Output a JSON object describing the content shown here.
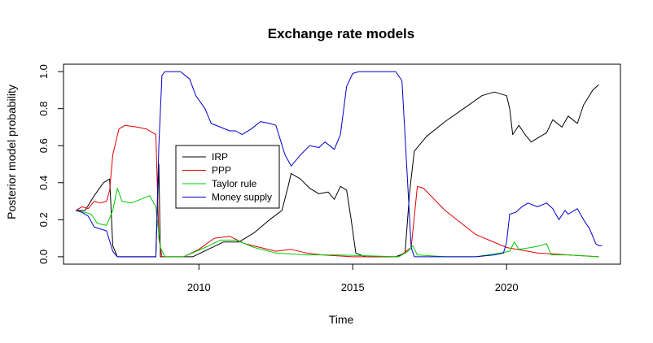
{
  "chart_data": {
    "type": "line",
    "title": "Exchange rate models",
    "xlabel": "Time",
    "ylabel": "Posterior model probability",
    "xlim": [
      2005.6,
      2023.7
    ],
    "ylim": [
      -0.04,
      1.04
    ],
    "x_ticks": [
      2010,
      2015,
      2020
    ],
    "x_tick_labels": [
      "2010",
      "2015",
      "2020"
    ],
    "y_ticks": [
      0.0,
      0.2,
      0.4,
      0.6,
      0.8,
      1.0
    ],
    "y_tick_labels": [
      "0.0",
      "0.2",
      "0.4",
      "0.6",
      "0.8",
      "1.0"
    ],
    "grid": false,
    "legend_position": "center-left",
    "series": [
      {
        "name": "IRP",
        "color": "#000000",
        "points": [
          [
            2006.0,
            0.25
          ],
          [
            2006.3,
            0.25
          ],
          [
            2006.6,
            0.33
          ],
          [
            2006.9,
            0.4
          ],
          [
            2007.1,
            0.42
          ],
          [
            2007.2,
            0.06
          ],
          [
            2007.35,
            0.0
          ],
          [
            2008.4,
            0.0
          ],
          [
            2008.6,
            0.0
          ],
          [
            2008.7,
            0.5
          ],
          [
            2008.75,
            0.0
          ],
          [
            2009.2,
            0.0
          ],
          [
            2009.8,
            0.0
          ],
          [
            2010.3,
            0.04
          ],
          [
            2010.8,
            0.08
          ],
          [
            2011.3,
            0.08
          ],
          [
            2011.8,
            0.13
          ],
          [
            2012.3,
            0.2
          ],
          [
            2012.7,
            0.25
          ],
          [
            2012.9,
            0.38
          ],
          [
            2013.0,
            0.45
          ],
          [
            2013.3,
            0.42
          ],
          [
            2013.6,
            0.37
          ],
          [
            2013.9,
            0.34
          ],
          [
            2014.2,
            0.35
          ],
          [
            2014.4,
            0.31
          ],
          [
            2014.6,
            0.38
          ],
          [
            2014.8,
            0.36
          ],
          [
            2014.95,
            0.2
          ],
          [
            2015.1,
            0.02
          ],
          [
            2015.4,
            0.0
          ],
          [
            2016.4,
            0.0
          ],
          [
            2016.7,
            0.02
          ],
          [
            2016.85,
            0.35
          ],
          [
            2017.0,
            0.57
          ],
          [
            2017.4,
            0.65
          ],
          [
            2018.0,
            0.73
          ],
          [
            2018.6,
            0.8
          ],
          [
            2019.2,
            0.87
          ],
          [
            2019.6,
            0.89
          ],
          [
            2020.0,
            0.87
          ],
          [
            2020.1,
            0.8
          ],
          [
            2020.2,
            0.66
          ],
          [
            2020.4,
            0.71
          ],
          [
            2020.6,
            0.66
          ],
          [
            2020.8,
            0.62
          ],
          [
            2021.0,
            0.64
          ],
          [
            2021.3,
            0.67
          ],
          [
            2021.5,
            0.74
          ],
          [
            2021.8,
            0.7
          ],
          [
            2022.0,
            0.76
          ],
          [
            2022.3,
            0.72
          ],
          [
            2022.5,
            0.82
          ],
          [
            2022.8,
            0.9
          ],
          [
            2023.0,
            0.93
          ]
        ]
      },
      {
        "name": "PPP",
        "color": "#dd0000",
        "points": [
          [
            2006.0,
            0.25
          ],
          [
            2006.2,
            0.27
          ],
          [
            2006.4,
            0.26
          ],
          [
            2006.6,
            0.3
          ],
          [
            2006.8,
            0.29
          ],
          [
            2007.0,
            0.3
          ],
          [
            2007.1,
            0.36
          ],
          [
            2007.2,
            0.55
          ],
          [
            2007.4,
            0.69
          ],
          [
            2007.6,
            0.71
          ],
          [
            2008.0,
            0.7
          ],
          [
            2008.3,
            0.69
          ],
          [
            2008.5,
            0.67
          ],
          [
            2008.6,
            0.66
          ],
          [
            2008.7,
            0.1
          ],
          [
            2008.8,
            0.0
          ],
          [
            2009.5,
            0.0
          ],
          [
            2010.0,
            0.04
          ],
          [
            2010.5,
            0.1
          ],
          [
            2011.0,
            0.11
          ],
          [
            2011.5,
            0.07
          ],
          [
            2012.0,
            0.05
          ],
          [
            2012.5,
            0.03
          ],
          [
            2013.0,
            0.04
          ],
          [
            2013.5,
            0.02
          ],
          [
            2014.0,
            0.01
          ],
          [
            2015.0,
            0.0
          ],
          [
            2016.5,
            0.0
          ],
          [
            2016.9,
            0.05
          ],
          [
            2017.1,
            0.38
          ],
          [
            2017.3,
            0.37
          ],
          [
            2018.0,
            0.25
          ],
          [
            2019.0,
            0.12
          ],
          [
            2020.0,
            0.05
          ],
          [
            2021.0,
            0.02
          ],
          [
            2022.0,
            0.01
          ],
          [
            2023.0,
            0.0
          ]
        ]
      },
      {
        "name": "Taylor rule",
        "color": "#00cc00",
        "points": [
          [
            2006.0,
            0.25
          ],
          [
            2006.3,
            0.24
          ],
          [
            2006.5,
            0.23
          ],
          [
            2006.7,
            0.18
          ],
          [
            2007.0,
            0.17
          ],
          [
            2007.2,
            0.25
          ],
          [
            2007.35,
            0.37
          ],
          [
            2007.5,
            0.3
          ],
          [
            2007.8,
            0.29
          ],
          [
            2008.1,
            0.31
          ],
          [
            2008.4,
            0.33
          ],
          [
            2008.6,
            0.27
          ],
          [
            2008.75,
            0.05
          ],
          [
            2008.9,
            0.0
          ],
          [
            2009.5,
            0.0
          ],
          [
            2010.2,
            0.05
          ],
          [
            2010.7,
            0.09
          ],
          [
            2011.2,
            0.09
          ],
          [
            2011.8,
            0.05
          ],
          [
            2012.5,
            0.02
          ],
          [
            2013.5,
            0.01
          ],
          [
            2014.5,
            0.01
          ],
          [
            2016.5,
            0.0
          ],
          [
            2016.8,
            0.03
          ],
          [
            2016.95,
            0.06
          ],
          [
            2017.1,
            0.01
          ],
          [
            2018.0,
            0.0
          ],
          [
            2019.0,
            0.0
          ],
          [
            2019.8,
            0.02
          ],
          [
            2020.1,
            0.03
          ],
          [
            2020.25,
            0.08
          ],
          [
            2020.4,
            0.04
          ],
          [
            2020.8,
            0.05
          ],
          [
            2021.1,
            0.06
          ],
          [
            2021.3,
            0.07
          ],
          [
            2021.45,
            0.01
          ],
          [
            2022.0,
            0.01
          ],
          [
            2023.0,
            0.0
          ]
        ]
      },
      {
        "name": "Money supply",
        "color": "#0000cc",
        "points": [
          [
            2006.0,
            0.25
          ],
          [
            2006.2,
            0.24
          ],
          [
            2006.4,
            0.22
          ],
          [
            2006.6,
            0.16
          ],
          [
            2007.0,
            0.14
          ],
          [
            2007.2,
            0.03
          ],
          [
            2007.35,
            0.0
          ],
          [
            2008.6,
            0.0
          ],
          [
            2008.7,
            0.6
          ],
          [
            2008.8,
            0.98
          ],
          [
            2008.9,
            1.0
          ],
          [
            2009.4,
            1.0
          ],
          [
            2009.7,
            0.96
          ],
          [
            2009.9,
            0.87
          ],
          [
            2010.2,
            0.8
          ],
          [
            2010.4,
            0.72
          ],
          [
            2010.7,
            0.7
          ],
          [
            2011.0,
            0.68
          ],
          [
            2011.2,
            0.68
          ],
          [
            2011.4,
            0.66
          ],
          [
            2011.7,
            0.69
          ],
          [
            2012.0,
            0.73
          ],
          [
            2012.3,
            0.72
          ],
          [
            2012.5,
            0.71
          ],
          [
            2012.8,
            0.55
          ],
          [
            2013.0,
            0.49
          ],
          [
            2013.3,
            0.55
          ],
          [
            2013.6,
            0.6
          ],
          [
            2013.9,
            0.59
          ],
          [
            2014.1,
            0.62
          ],
          [
            2014.4,
            0.58
          ],
          [
            2014.6,
            0.66
          ],
          [
            2014.8,
            0.92
          ],
          [
            2015.0,
            0.99
          ],
          [
            2015.2,
            1.0
          ],
          [
            2016.4,
            1.0
          ],
          [
            2016.6,
            0.95
          ],
          [
            2016.75,
            0.5
          ],
          [
            2016.9,
            0.05
          ],
          [
            2017.0,
            0.0
          ],
          [
            2018.5,
            0.0
          ],
          [
            2019.0,
            0.0
          ],
          [
            2019.6,
            0.01
          ],
          [
            2019.9,
            0.02
          ],
          [
            2020.0,
            0.08
          ],
          [
            2020.1,
            0.23
          ],
          [
            2020.3,
            0.24
          ],
          [
            2020.5,
            0.27
          ],
          [
            2020.7,
            0.29
          ],
          [
            2021.0,
            0.27
          ],
          [
            2021.3,
            0.29
          ],
          [
            2021.5,
            0.26
          ],
          [
            2021.7,
            0.2
          ],
          [
            2021.9,
            0.25
          ],
          [
            2022.0,
            0.23
          ],
          [
            2022.3,
            0.26
          ],
          [
            2022.5,
            0.2
          ],
          [
            2022.7,
            0.15
          ],
          [
            2022.9,
            0.07
          ],
          [
            2023.0,
            0.06
          ],
          [
            2023.1,
            0.06
          ]
        ]
      }
    ]
  }
}
